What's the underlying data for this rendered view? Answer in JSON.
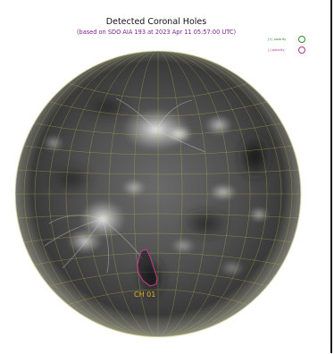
{
  "title": "Detected Coronal Holes",
  "subtitle": "(based on SDO AIA 193 at 2023 Apr 11 05:57:00 UTC)",
  "legend": [
    {
      "label": "|+| polarity",
      "color": "#2e8b2e"
    },
    {
      "label": "|-| polarity",
      "color": "#b0348f"
    }
  ],
  "coronal_holes": [
    {
      "label": "CH 01",
      "polarity": "negative",
      "outline_color": "#c23a8a",
      "label_color": "#e0b020"
    }
  ],
  "colors": {
    "grid": "#b8b84a",
    "disk_dark": "#2b2b2b",
    "disk_mid": "#5a5a5a",
    "limb": "#e8e6b0"
  }
}
